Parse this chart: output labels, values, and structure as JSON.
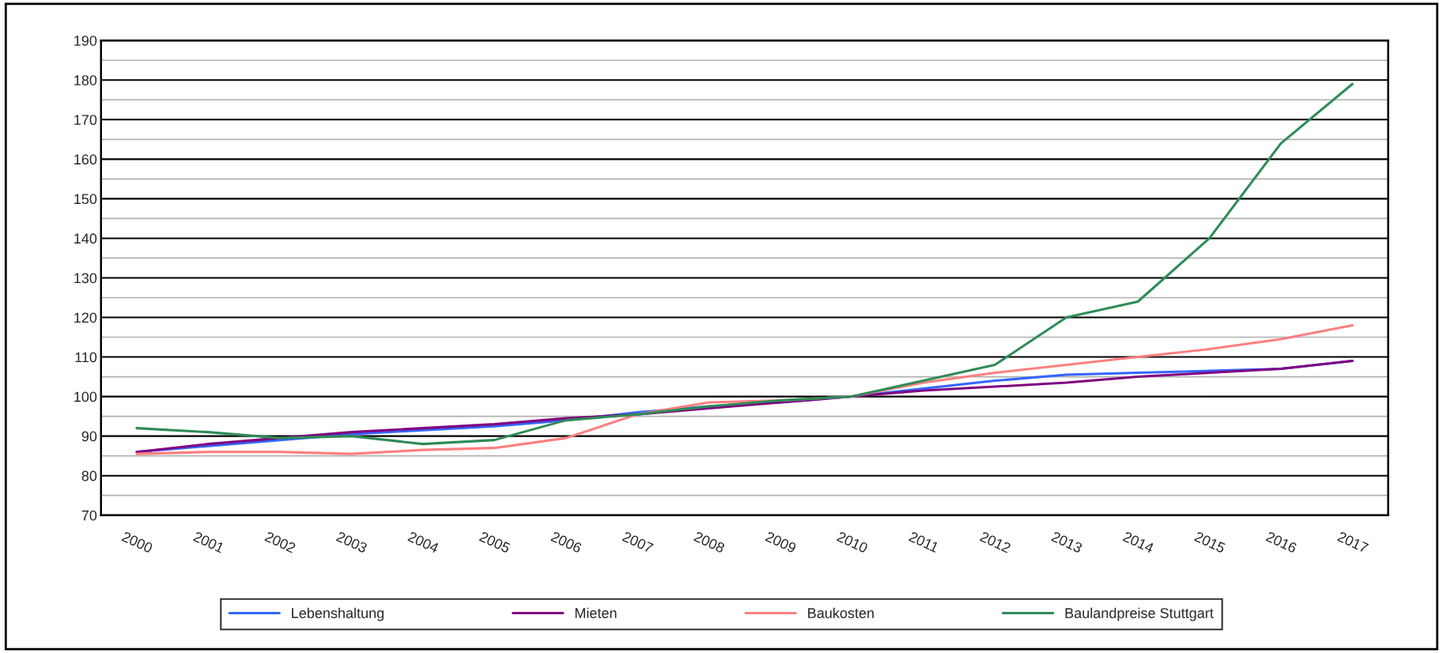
{
  "chart_data": {
    "type": "line",
    "categories": [
      "2000",
      "2001",
      "2002",
      "2003",
      "2004",
      "2005",
      "2006",
      "2007",
      "2008",
      "2009",
      "2010",
      "2011",
      "2012",
      "2013",
      "2014",
      "2015",
      "2016",
      "2017"
    ],
    "series": [
      {
        "name": "Lebenshaltung",
        "color": "#3366ff",
        "values": [
          86,
          87.5,
          89,
          90.5,
          91.5,
          92.5,
          94,
          96,
          97.5,
          98.5,
          100,
          102,
          104,
          105.5,
          106,
          106.5,
          107,
          109
        ]
      },
      {
        "name": "Mieten",
        "color": "#800080",
        "values": [
          86,
          88,
          89.5,
          91,
          92,
          93,
          94.5,
          95.5,
          97,
          98.5,
          100,
          101.5,
          102.5,
          103.5,
          105,
          106,
          107,
          109
        ]
      },
      {
        "name": "Baukosten",
        "color": "#ff7f7f",
        "values": [
          85.5,
          86,
          86,
          85.5,
          86.5,
          87,
          89.5,
          95.5,
          98.5,
          99,
          100,
          103.5,
          106,
          108,
          110,
          112,
          114.5,
          118
        ]
      },
      {
        "name": "Baulandpreise Stuttgart",
        "color": "#2e8b57",
        "values": [
          92,
          91,
          89.5,
          90,
          88,
          89,
          94,
          95.5,
          97.5,
          99,
          100,
          104,
          108,
          120,
          124,
          140,
          164,
          179
        ]
      }
    ],
    "ylim": [
      70,
      190
    ],
    "yticks": [
      70,
      {
        "value": 75,
        "label": null
      },
      80,
      {
        "value": 85,
        "label": null
      },
      90,
      {
        "value": 95,
        "label": null
      },
      100,
      {
        "value": 105,
        "label": null
      },
      110,
      {
        "value": 115,
        "label": null
      },
      120,
      {
        "value": 125,
        "label": null
      },
      130,
      {
        "value": 135,
        "label": null
      },
      140,
      {
        "value": 145,
        "label": null
      },
      150,
      {
        "value": 155,
        "label": null
      },
      160,
      {
        "value": 165,
        "label": null
      },
      170,
      {
        "value": 175,
        "label": null
      },
      180,
      {
        "value": 185,
        "label": null
      },
      190
    ],
    "grid": "y",
    "legend": "bottom",
    "line_style": "solid"
  }
}
